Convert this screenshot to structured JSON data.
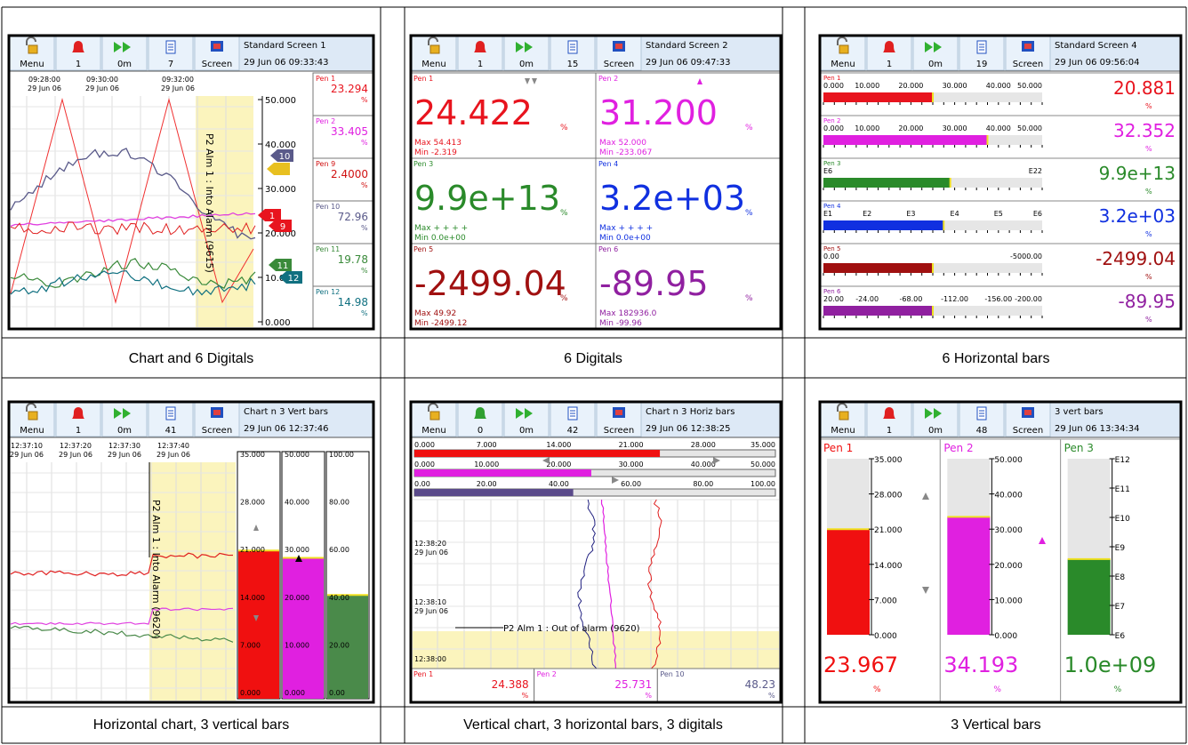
{
  "panels": [
    {
      "toolbar": {
        "buttons": [
          "Menu",
          "1",
          "0m",
          "7",
          "Screen"
        ],
        "title": "Standard Screen 1",
        "datetime": "29 Jun 06  09:33:43"
      },
      "chart": {
        "times": [
          {
            "time": "09:28:00",
            "date": "29 Jun 06"
          },
          {
            "time": "09:30:00",
            "date": "29 Jun 06"
          },
          {
            "time": "09:32:00",
            "date": "29 Jun 06"
          }
        ],
        "alarm": "P2 Alm 1 : Into Alarm (9615)",
        "scale": [
          "50.000",
          "40.000",
          "30.000",
          "20.000",
          "10.000",
          "0.000"
        ],
        "markers": [
          {
            "label": "10",
            "color": "#5a5a8a"
          },
          {
            "label": "1",
            "color": "#e8141e"
          },
          {
            "label": "9",
            "color": "#e8141e"
          },
          {
            "label": "11",
            "color": "#3a8a3a"
          },
          {
            "label": "12",
            "color": "#107080"
          }
        ]
      },
      "digitals": [
        {
          "name": "Pen 1",
          "value": "23.294",
          "unit": "%",
          "color": "#e8141e"
        },
        {
          "name": "Pen 2",
          "value": "33.405",
          "unit": "%",
          "color": "#e020e0"
        },
        {
          "name": "Pen 9",
          "value": "2.4000",
          "unit": "%",
          "color": "#d01010"
        },
        {
          "name": "Pen 10",
          "value": "72.96",
          "unit": "%",
          "color": "#5a5a8a"
        },
        {
          "name": "Pen 11",
          "value": "19.78",
          "unit": "%",
          "color": "#3a8a3a"
        },
        {
          "name": "Pen 12",
          "value": "14.98",
          "unit": "%",
          "color": "#107080"
        }
      ],
      "caption": "Chart and 6 Digitals"
    },
    {
      "toolbar": {
        "buttons": [
          "Menu",
          "1",
          "0m",
          "15",
          "Screen"
        ],
        "title": "Standard Screen 2",
        "datetime": "29 Jun 06  09:47:33"
      },
      "digitals": [
        {
          "name": "Pen 1",
          "value": "24.422",
          "unit": "%",
          "max": "Max  54.413",
          "min": "Min  -2.319",
          "color": "#e8141e"
        },
        {
          "name": "Pen 2",
          "value": "31.200",
          "unit": "%",
          "max": "Max  52.000",
          "min": "Min  -233.067",
          "color": "#e020e0"
        },
        {
          "name": "Pen 3",
          "value": "9.9e+13",
          "unit": "%",
          "max": "Max  + + + +",
          "min": "Min  0.0e+00",
          "color": "#2a8a2a"
        },
        {
          "name": "Pen 4",
          "value": "3.2e+03",
          "unit": "%",
          "max": "Max  + + + +",
          "min": "Min  0.0e+00",
          "color": "#1030e0"
        },
        {
          "name": "Pen 5",
          "value": "-2499.04",
          "unit": "%",
          "max": "Max  49.92",
          "min": "Min  -2499.12",
          "color": "#a01010"
        },
        {
          "name": "Pen 6",
          "value": "-89.95",
          "unit": "%",
          "max": "Max  182936.0",
          "min": "Min  -99.96",
          "color": "#9020a0"
        }
      ],
      "caption": "6 Digitals"
    },
    {
      "toolbar": {
        "buttons": [
          "Menu",
          "1",
          "0m",
          "19",
          "Screen"
        ],
        "title": "Standard Screen 4",
        "datetime": "29 Jun 06  09:56:04"
      },
      "bars": [
        {
          "name": "Pen 1",
          "scale": [
            "0.000",
            "10.000",
            "20.000",
            "30.000",
            "40.000",
            "50.000"
          ],
          "value": "20.881",
          "unit": "%",
          "color": "#e8141e"
        },
        {
          "name": "Pen 2",
          "scale": [
            "0.000",
            "10.000",
            "20.000",
            "30.000",
            "40.000",
            "50.000"
          ],
          "value": "32.352",
          "unit": "%",
          "color": "#e020e0"
        },
        {
          "name": "Pen 3",
          "scale": [
            "E6",
            "E22"
          ],
          "value": "9.9e+13",
          "unit": "%",
          "color": "#2a8a2a"
        },
        {
          "name": "Pen 4",
          "scale": [
            "E1",
            "E2",
            "E3",
            "E4",
            "E5",
            "E6"
          ],
          "value": "3.2e+03",
          "unit": "%",
          "color": "#1030e0"
        },
        {
          "name": "Pen 5",
          "scale": [
            "0.00",
            "-5000.00"
          ],
          "value": "-2499.04",
          "unit": "%",
          "color": "#a01010"
        },
        {
          "name": "Pen 6",
          "scale": [
            "20.00",
            "-24.00",
            "-68.00",
            "-112.00",
            "-156.00",
            "-200.00"
          ],
          "value": "-89.95",
          "unit": "%",
          "color": "#9020a0"
        }
      ],
      "caption": "6 Horizontal bars"
    },
    {
      "toolbar": {
        "buttons": [
          "Menu",
          "1",
          "0m",
          "41",
          "Screen"
        ],
        "title": "Chart n 3 Vert bars",
        "datetime": "29 Jun 06  12:37:46"
      },
      "chart": {
        "times": [
          {
            "time": "12:37:10",
            "date": "29 Jun 06"
          },
          {
            "time": "12:37:20",
            "date": "29 Jun 06"
          },
          {
            "time": "12:37:30",
            "date": "29 Jun 06"
          },
          {
            "time": "12:37:40",
            "date": "29 Jun 06"
          }
        ],
        "alarm": "P2 Alm 1 : Into Alarm (9620)"
      },
      "bars": [
        {
          "scale": [
            "35.000",
            "28.000",
            "21.000",
            "14.000",
            "7.000",
            "0.000"
          ],
          "color": "#f01010"
        },
        {
          "scale": [
            "50.000",
            "40.000",
            "30.000",
            "20.000",
            "10.000",
            "0.000"
          ],
          "color": "#e020e0"
        },
        {
          "scale": [
            "100.00",
            "80.00",
            "60.00",
            "40.00",
            "20.00",
            "0.00"
          ],
          "color": "#4a8a4a"
        }
      ],
      "caption": "Horizontal chart, 3 vertical bars"
    },
    {
      "toolbar": {
        "buttons": [
          "Menu",
          "0",
          "0m",
          "42",
          "Screen"
        ],
        "title": "Chart n 3 Horiz bars",
        "datetime": "29 Jun 06  12:38:25"
      },
      "bars": [
        {
          "scale": [
            "0.000",
            "7.000",
            "14.000",
            "21.000",
            "28.000",
            "35.000"
          ],
          "color": "#f01010"
        },
        {
          "scale": [
            "0.000",
            "10.000",
            "20.000",
            "30.000",
            "40.000",
            "50.000"
          ],
          "color": "#e020e0"
        },
        {
          "scale": [
            "0.00",
            "20.00",
            "40.00",
            "60.00",
            "80.00",
            "100.00"
          ],
          "color": "#5a4a8a"
        }
      ],
      "chart": {
        "times": [
          {
            "time": "12:38:20",
            "date": "29 Jun 06"
          },
          {
            "time": "12:38:10",
            "date": "29 Jun 06"
          },
          {
            "time": "12:38:00"
          }
        ],
        "alarm": "P2 Alm 1 : Out of alarm (9620)"
      },
      "digitals": [
        {
          "name": "Pen 1",
          "value": "24.388",
          "unit": "%",
          "color": "#e8141e"
        },
        {
          "name": "Pen 2",
          "value": "25.731",
          "unit": "%",
          "color": "#e020e0"
        },
        {
          "name": "Pen 10",
          "value": "48.23",
          "unit": "%",
          "color": "#5a5a8a"
        }
      ],
      "caption": "Vertical chart, 3 horizontal bars, 3 digitals"
    },
    {
      "toolbar": {
        "buttons": [
          "Menu",
          "1",
          "0m",
          "48",
          "Screen"
        ],
        "title": "3 vert bars",
        "datetime": "29 Jun 06  13:34:34"
      },
      "bars": [
        {
          "name": "Pen 1",
          "scale": [
            "35.000",
            "28.000",
            "21.000",
            "14.000",
            "7.000",
            "0.000"
          ],
          "value": "23.967",
          "unit": "%",
          "color": "#f01010"
        },
        {
          "name": "Pen 2",
          "scale": [
            "50.000",
            "40.000",
            "30.000",
            "20.000",
            "10.000",
            "0.000"
          ],
          "value": "34.193",
          "unit": "%",
          "color": "#e020e0"
        },
        {
          "name": "Pen 3",
          "scale": [
            "E12",
            "E11",
            "E10",
            "E9",
            "E8",
            "E7",
            "E6"
          ],
          "value": "1.0e+09",
          "unit": "%",
          "color": "#2a8a2a"
        }
      ],
      "caption": "3 Vertical bars"
    }
  ]
}
